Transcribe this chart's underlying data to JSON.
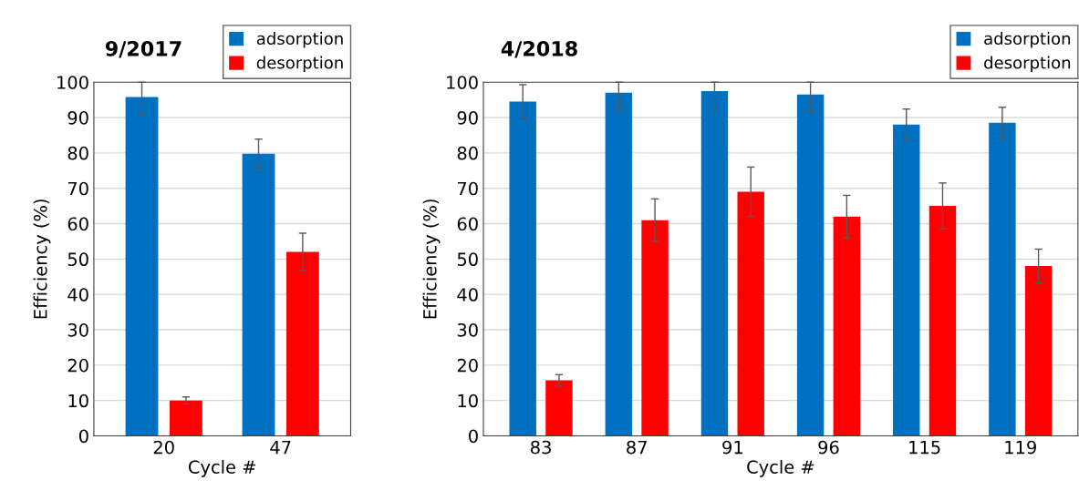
{
  "chart_data": [
    {
      "type": "bar",
      "title": "9/2017",
      "xlabel": "Cycle #",
      "ylabel": "Efficiency (%)",
      "categories": [
        "20",
        "47"
      ],
      "series": [
        {
          "name": "adsorption",
          "color": "#0070c0",
          "values": [
            95.8,
            79.8
          ],
          "errors": [
            [
              91,
              100
            ],
            4.1
          ]
        },
        {
          "name": "desorption",
          "color": "#ff0000",
          "values": [
            10,
            52
          ],
          "errors": [
            1,
            5.3
          ]
        }
      ],
      "ylim": [
        0,
        100
      ],
      "yticks": [
        0,
        10,
        20,
        30,
        40,
        50,
        60,
        70,
        80,
        90,
        100
      ],
      "grid": "y",
      "legend": "top right"
    },
    {
      "type": "bar",
      "title": "4/2018",
      "xlabel": "Cycle #",
      "ylabel": "Efficiency (%)",
      "categories": [
        "83",
        "87",
        "91",
        "96",
        "115",
        "119"
      ],
      "series": [
        {
          "name": "adsorption",
          "color": "#0070c0",
          "values": [
            94.5,
            97,
            97.5,
            96.5,
            88,
            88.5
          ],
          "errors": [
            4.8,
            [
              92,
              100
            ],
            [
              92.5,
              100
            ],
            [
              91.5,
              100
            ],
            4.4,
            4.4
          ]
        },
        {
          "name": "desorption",
          "color": "#ff0000",
          "values": [
            15.7,
            61,
            69,
            62,
            65,
            48
          ],
          "errors": [
            1.6,
            6,
            7,
            6,
            6.5,
            4.8
          ]
        }
      ],
      "ylim": [
        0,
        100
      ],
      "yticks": [
        0,
        10,
        20,
        30,
        40,
        50,
        60,
        70,
        80,
        90,
        100
      ],
      "grid": "y",
      "legend": "top right"
    }
  ]
}
